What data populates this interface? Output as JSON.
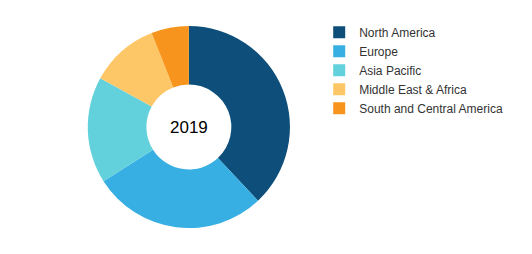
{
  "chart_data": {
    "type": "pie",
    "categories": [
      "North America",
      "Europe",
      "Asia Pacific",
      "Middle East & Africa",
      "South and Central America"
    ],
    "values": [
      38,
      28,
      17,
      11,
      6
    ],
    "colors": [
      "#0d4f7a",
      "#37afe3",
      "#62d1dc",
      "#fdc767",
      "#f7941d"
    ],
    "annotations": [
      "2019"
    ],
    "legend": "right"
  }
}
